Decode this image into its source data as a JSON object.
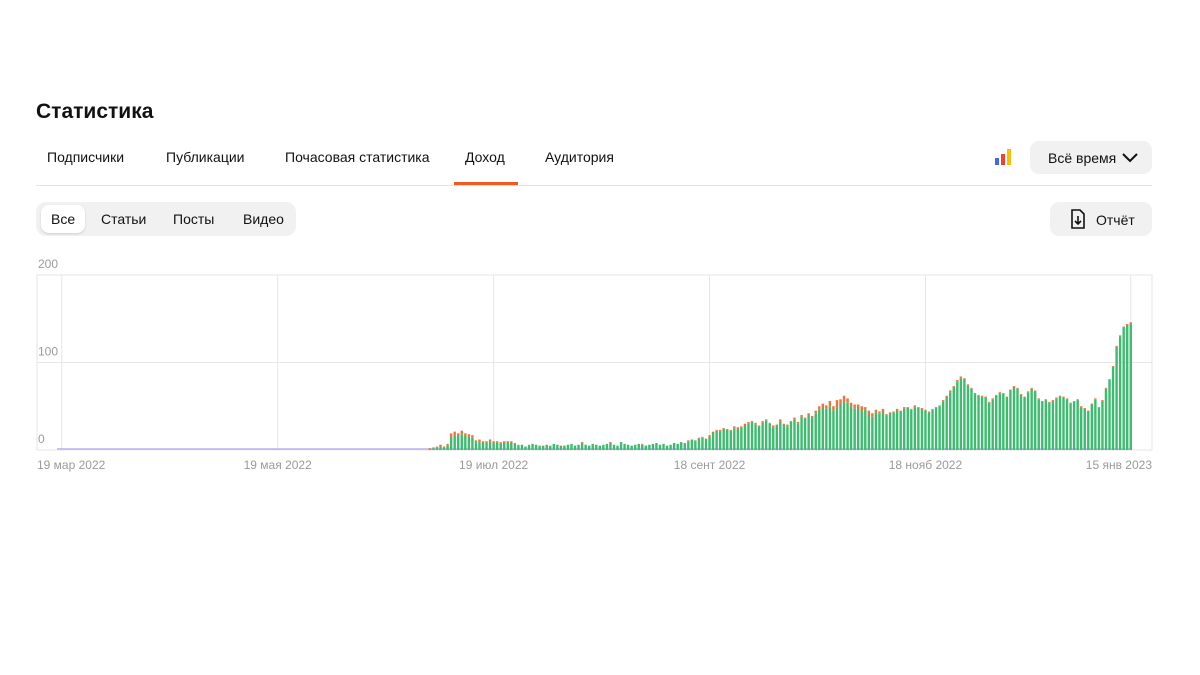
{
  "header": {
    "title": "Статистика"
  },
  "tabs": [
    "Подписчики",
    "Публикации",
    "Почасовая статистика",
    "Доход",
    "Аудитория"
  ],
  "period": "Всё время",
  "filters": [
    "Все",
    "Статьи",
    "Посты",
    "Видео"
  ],
  "report": "Отчёт",
  "chart_data": {
    "type": "bar",
    "stacked": true,
    "grid": true,
    "xlim": [
      -7,
      308
    ],
    "xticks": [
      {
        "value": 0,
        "label": "19 мар 2022"
      },
      {
        "value": 61,
        "label": "19 мая 2022"
      },
      {
        "value": 122,
        "label": "19 июл 2022"
      },
      {
        "value": 183,
        "label": "18 сент 2022"
      },
      {
        "value": 244,
        "label": "18 нояб 2022"
      },
      {
        "value": 302,
        "label": "15 янв 2023"
      }
    ],
    "ylim": [
      0,
      200
    ],
    "yticks": [
      0,
      100,
      200
    ],
    "x": [
      104,
      105,
      106,
      107,
      108,
      109,
      110,
      111,
      112,
      113,
      114,
      115,
      116,
      117,
      118,
      119,
      120,
      121,
      122,
      123,
      124,
      125,
      126,
      127,
      128,
      129,
      130,
      131,
      132,
      133,
      134,
      135,
      136,
      137,
      138,
      139,
      140,
      141,
      142,
      143,
      144,
      145,
      146,
      147,
      148,
      149,
      150,
      151,
      152,
      153,
      154,
      155,
      156,
      157,
      158,
      159,
      160,
      161,
      162,
      163,
      164,
      165,
      166,
      167,
      168,
      169,
      170,
      171,
      172,
      173,
      174,
      175,
      176,
      177,
      178,
      179,
      180,
      181,
      182,
      183,
      184,
      185,
      186,
      187,
      188,
      189,
      190,
      191,
      192,
      193,
      194,
      195,
      196,
      197,
      198,
      199,
      200,
      201,
      202,
      203,
      204,
      205,
      206,
      207,
      208,
      209,
      210,
      211,
      212,
      213,
      214,
      215,
      216,
      217,
      218,
      219,
      220,
      221,
      222,
      223,
      224,
      225,
      226,
      227,
      228,
      229,
      230,
      231,
      232,
      233,
      234,
      235,
      236,
      237,
      238,
      239,
      240,
      241,
      242,
      243,
      244,
      245,
      246,
      247,
      248,
      249,
      250,
      251,
      252,
      253,
      254,
      255,
      256,
      257,
      258,
      259,
      260,
      261,
      262,
      263,
      264,
      265,
      266,
      267,
      268,
      269,
      270,
      271,
      272,
      273,
      274,
      275,
      276,
      277,
      278,
      279,
      280,
      281,
      282,
      283,
      284,
      285,
      286,
      287,
      288,
      289,
      290,
      291,
      292,
      293,
      294,
      295,
      296,
      297,
      298,
      299,
      300,
      301,
      302
    ],
    "series": [
      {
        "color": "#3dbb6e",
        "values": [
          1,
          2,
          3,
          4,
          3,
          5,
          15,
          17,
          16,
          18,
          16,
          15,
          14,
          9,
          10,
          8,
          9,
          10,
          8,
          9,
          7,
          8,
          9,
          8,
          7,
          5,
          6,
          4,
          5,
          7,
          6,
          5,
          4,
          6,
          5,
          7,
          6,
          4,
          5,
          6,
          7,
          5,
          6,
          8,
          6,
          5,
          7,
          6,
          5,
          6,
          7,
          8,
          6,
          5,
          9,
          7,
          6,
          5,
          6,
          7,
          6,
          5,
          6,
          7,
          8,
          6,
          7,
          5,
          6,
          8,
          7,
          9,
          8,
          10,
          12,
          11,
          13,
          14,
          12,
          15,
          20,
          22,
          21,
          24,
          23,
          22,
          25,
          24,
          26,
          28,
          30,
          32,
          29,
          27,
          31,
          34,
          30,
          26,
          28,
          33,
          29,
          27,
          32,
          35,
          30,
          38,
          36,
          40,
          37,
          42,
          46,
          48,
          47,
          50,
          45,
          49,
          52,
          55,
          54,
          50,
          47,
          48,
          44,
          46,
          40,
          38,
          43,
          42,
          44,
          39,
          41,
          43,
          45,
          44,
          47,
          48,
          46,
          49,
          48,
          47,
          45,
          43,
          46,
          48,
          50,
          55,
          60,
          66,
          72,
          78,
          82,
          80,
          74,
          70,
          64,
          62,
          61,
          60,
          54,
          58,
          62,
          65,
          64,
          60,
          68,
          72,
          70,
          63,
          60,
          66,
          70,
          67,
          58,
          55,
          57,
          54,
          56,
          59,
          61,
          60,
          58,
          53,
          55,
          57,
          49,
          47,
          44,
          52,
          58,
          48,
          56,
          70,
          80,
          95,
          118,
          130,
          140,
          143,
          145
        ]
      },
      {
        "color": "#f0713a",
        "values": [
          1,
          1,
          1,
          2,
          1,
          2,
          4,
          4,
          3,
          4,
          3,
          3,
          3,
          2,
          2,
          2,
          1,
          2,
          2,
          1,
          2,
          2,
          1,
          2,
          1,
          1,
          0,
          0,
          1,
          0,
          0,
          0,
          1,
          0,
          0,
          0,
          0,
          1,
          0,
          0,
          0,
          0,
          0,
          1,
          0,
          0,
          0,
          0,
          0,
          0,
          0,
          1,
          0,
          0,
          0,
          0,
          0,
          0,
          0,
          0,
          1,
          0,
          0,
          0,
          0,
          0,
          0,
          0,
          0,
          0,
          0,
          0,
          0,
          1,
          0,
          0,
          1,
          1,
          1,
          2,
          1,
          1,
          2,
          1,
          1,
          1,
          2,
          2,
          1,
          2,
          2,
          1,
          2,
          1,
          2,
          1,
          1,
          2,
          1,
          2,
          1,
          2,
          1,
          2,
          2,
          2,
          1,
          2,
          2,
          3,
          4,
          5,
          4,
          6,
          5,
          8,
          6,
          7,
          5,
          4,
          5,
          4,
          6,
          3,
          5,
          4,
          3,
          2,
          3,
          2,
          2,
          1,
          2,
          1,
          2,
          1,
          1,
          2,
          1,
          1,
          1,
          1,
          1,
          1,
          1,
          2,
          2,
          2,
          1,
          2,
          2,
          2,
          1,
          1,
          1,
          1,
          1,
          1,
          1,
          1,
          1,
          1,
          1,
          1,
          1,
          1,
          1,
          1,
          1,
          1,
          1,
          1,
          1,
          1,
          1,
          1,
          1,
          1,
          1,
          1,
          1,
          1,
          1,
          1,
          1,
          1,
          1,
          1,
          1,
          1,
          1,
          1,
          1,
          1,
          1,
          1,
          1,
          1,
          1
        ]
      }
    ]
  }
}
